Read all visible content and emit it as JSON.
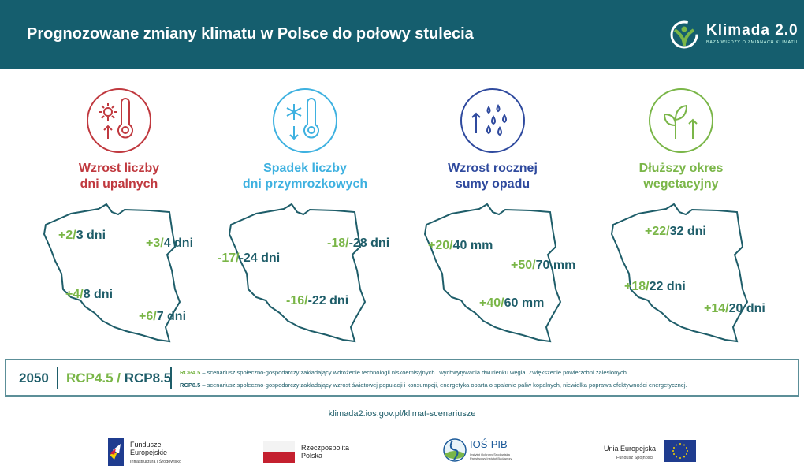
{
  "header": {
    "title": "Prognozowane zmiany klimatu w Polsce do połowy stulecia",
    "logo_name": "Klimada 2.0",
    "logo_sub": "BAZA WIEDZY O ZMIANACH KLIMATU"
  },
  "colors": {
    "header": "#155e6e",
    "green": "#7ab648",
    "teal": "#1e5d69",
    "red": "#c0393f",
    "light_blue": "#3eb1e0",
    "dark_blue": "#2f4a9e"
  },
  "categories": [
    {
      "icon": "sun-thermometer-up-icon",
      "line1": "Wzrost liczby",
      "line2": "dni upalnych",
      "values": [
        [
          "+2/",
          "3 dni"
        ],
        [
          "+3/",
          "4 dni"
        ],
        [
          "+4/",
          "8 dni"
        ],
        [
          "+6/",
          "7 dni"
        ]
      ]
    },
    {
      "icon": "snowflake-thermometer-down-icon",
      "line1": "Spadek liczby",
      "line2": "dni przymrozkowych",
      "values": [
        [
          "-18/",
          "-28 dni"
        ],
        [
          "-17/",
          "-24 dni"
        ],
        [
          "-16/",
          "-22 dni"
        ]
      ]
    },
    {
      "icon": "rain-drops-up-icon",
      "line1": "Wzrost rocznej",
      "line2": "sumy opadu",
      "values": [
        [
          "+20/",
          "40 mm"
        ],
        [
          "+50/",
          "70 mm"
        ],
        [
          "+40/",
          "60 mm"
        ]
      ]
    },
    {
      "icon": "plant-up-icon",
      "line1": "Dłuższy okres",
      "line2": "wegetacyjny",
      "values": [
        [
          "+22/",
          "32 dni"
        ],
        [
          "+18/",
          "22 dni"
        ],
        [
          "+14/",
          "20 dni"
        ]
      ]
    }
  ],
  "legend": {
    "year": "2050",
    "rcp45": "RCP4.5",
    "slash": " / ",
    "rcp85": "RCP8.5",
    "desc45_label": "RCP4.5",
    "desc45": " – scenariusz społeczno-gospodarczy zakładający wdrożenie technologii niskoemisyjnych i wychwytywania dwutlenku węgla. Zwiększenie powierzchni zalesionych.",
    "desc85_label": "RCP8.5",
    "desc85": " – scenariusz społeczno-gospodarczy zakładający wzrost światowej populacji i konsumpcji, energetyka oparta o spalanie paliw kopalnych, niewielka poprawa efektywności energetycznej."
  },
  "footer": {
    "url": "klimada2.ios.gov.pl/klimat-scenariusze",
    "fe1": "Fundusze",
    "fe2": "Europejskie",
    "fe3": "Infrastruktura i Środowisko",
    "rp1": "Rzeczpospolita",
    "rp2": "Polska",
    "ios": "IOŚ-PIB",
    "ios_sub1": "Instytut Ochrony Środowiska",
    "ios_sub2": "Państwowy Instytut Badawczy",
    "ue1": "Unia Europejska",
    "ue2": "Fundusz Spójności"
  }
}
